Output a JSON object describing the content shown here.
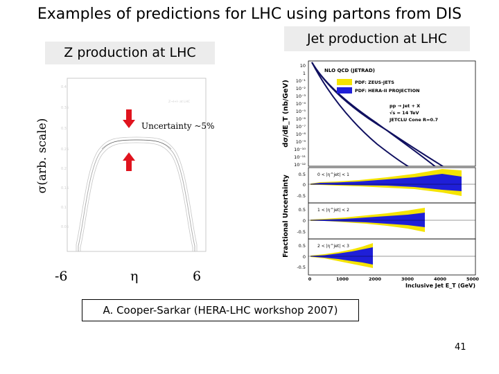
{
  "slide": {
    "title": "Examples of predictions for LHC using partons from DIS",
    "page_number": "41",
    "citation": "A. Cooper-Sarkar (HERA-LHC workshop 2007)"
  },
  "z_panel": {
    "label": "Z production at LHC",
    "y_axis_label": "σ(arb. scale)",
    "x_min": "-6",
    "x_symbol": "η",
    "x_max": "6",
    "uncertainty_note": "Uncertainty ~5%",
    "arrow_color": "#e0141e"
  },
  "jet_panel": {
    "label": "Jet production at LHC",
    "y_axis_label": "dσ/dE_T (nb/GeV)",
    "lower_y_axis_label": "Fractional Uncertainty",
    "x_axis_label": "Inclusive Jet E_T (GeV)",
    "x_ticks": [
      "0",
      "1000",
      "2000",
      "3000",
      "4000",
      "5000"
    ],
    "legend": {
      "title": "NLO QCD (JETRAD)",
      "items": [
        {
          "label": "PDF: ZEUS-JETS",
          "color": "#f5e400"
        },
        {
          "label": "PDF: HERA-II PROJECTION",
          "color": "#1f1fd8"
        }
      ]
    },
    "process": "pp → Jet + X",
    "energy": "√s = 14 TeV",
    "algorithm": "JETCLU Cone R=0.7",
    "upper_y_ticks": [
      "10",
      "1",
      "10⁻¹",
      "10⁻²",
      "10⁻³",
      "10⁻⁴",
      "10⁻⁵",
      "10⁻⁶",
      "10⁻⁷",
      "10⁻⁸",
      "10⁻⁹",
      "10⁻¹⁰",
      "10⁻¹¹",
      "10⁻¹²"
    ],
    "sub_panels": [
      {
        "range": "0 < |η^jet| < 1",
        "y_ticks": [
          "0.5",
          "0",
          "-0.5"
        ]
      },
      {
        "range": "1 < |η^jet| < 2",
        "y_ticks": [
          "0.5",
          "0",
          "-0.5"
        ]
      },
      {
        "range": "2 < |η^jet| < 3",
        "y_ticks": [
          "0.5",
          "0",
          "-0.5"
        ]
      }
    ]
  }
}
